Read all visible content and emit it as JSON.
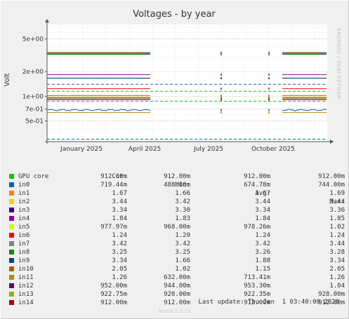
{
  "chart_data": {
    "type": "line",
    "title": "Voltages - by year",
    "ylabel": "Volt",
    "yscale": "log",
    "ylim": [
      0.28,
      7.5
    ],
    "yticks": [
      {
        "v": 5,
        "label": "5e+00"
      },
      {
        "v": 2,
        "label": "2e+00"
      },
      {
        "v": 1,
        "label": "1e+00"
      },
      {
        "v": 0.7,
        "label": "7e-01"
      },
      {
        "v": 0.5,
        "label": "5e-01"
      }
    ],
    "xticks": [
      "January 2025",
      "April 2025",
      "July 2025",
      "October 2025"
    ],
    "grid": true,
    "thresholds": [
      {
        "value": 1.4,
        "color": "#0066b3"
      },
      {
        "value": 1.15,
        "color": "#00cc00"
      },
      {
        "value": 0.87,
        "color": "#00cc00"
      },
      {
        "value": 0.3,
        "color": "#0066b3"
      }
    ],
    "series": [
      {
        "name": "GPU core",
        "color": "#00cc00",
        "cur": "912.00m",
        "min": "912.00m",
        "avg": "912.00m",
        "max": "912.00m",
        "level": 0.912
      },
      {
        "name": "in0",
        "color": "#0066b3",
        "cur": "719.44m",
        "min": "488.00m",
        "avg": "674.78m",
        "max": "744.00m",
        "level": 0.68
      },
      {
        "name": "in1",
        "color": "#ff8000",
        "cur": "1.67",
        "min": "1.66",
        "avg": "1.67",
        "max": "1.69",
        "level": 1.67
      },
      {
        "name": "in2",
        "color": "#ffcc00",
        "cur": "3.44",
        "min": "3.42",
        "avg": "3.44",
        "max": "3.44",
        "level": 3.44
      },
      {
        "name": "in3",
        "color": "#330099",
        "cur": "3.34",
        "min": "3.30",
        "avg": "3.34",
        "max": "3.36",
        "level": 3.34
      },
      {
        "name": "in4",
        "color": "#990099",
        "cur": "1.84",
        "min": "1.83",
        "avg": "1.84",
        "max": "1.85",
        "level": 1.84
      },
      {
        "name": "in5",
        "color": "#ccff00",
        "cur": "977.97m",
        "min": "968.00m",
        "avg": "978.26m",
        "max": "1.02",
        "level": 0.978
      },
      {
        "name": "in6",
        "color": "#ff0000",
        "cur": "1.24",
        "min": "1.20",
        "avg": "1.24",
        "max": "1.24",
        "level": 1.24
      },
      {
        "name": "in7",
        "color": "#808080",
        "cur": "3.42",
        "min": "3.42",
        "avg": "3.42",
        "max": "3.44",
        "level": 3.42
      },
      {
        "name": "in8",
        "color": "#008f00",
        "cur": "3.25",
        "min": "3.25",
        "avg": "3.26",
        "max": "3.28",
        "level": 3.25
      },
      {
        "name": "in9",
        "color": "#00487d",
        "cur": "3.34",
        "min": "1.66",
        "avg": "1.88",
        "max": "3.34",
        "level": 1.66
      },
      {
        "name": "in10",
        "color": "#b35a00",
        "cur": "2.05",
        "min": "1.02",
        "avg": "1.15",
        "max": "2.05",
        "level": 1.02
      },
      {
        "name": "in11",
        "color": "#b38f00",
        "cur": "1.26",
        "min": "632.00m",
        "avg": "713.41m",
        "max": "1.26",
        "level": 0.632
      },
      {
        "name": "in12",
        "color": "#6b006b",
        "cur": "952.00m",
        "min": "944.00m",
        "avg": "953.30m",
        "max": "1.04",
        "level": 0.952
      },
      {
        "name": "in13",
        "color": "#8fb300",
        "cur": "922.75m",
        "min": "920.00m",
        "avg": "922.35m",
        "max": "928.00m",
        "level": 0.922
      },
      {
        "name": "in14",
        "color": "#b30000",
        "cur": "912.00m",
        "min": "912.00m",
        "avg": "912.00m",
        "max": "912.00m",
        "level": 0.912
      }
    ]
  },
  "legend_headers": {
    "cur": "Cur:",
    "min": "Min:",
    "avg": "Avg:",
    "max": "Max:"
  },
  "last_update": "Last update: Thu Jan  1 03:40:00 2026",
  "footer": "Munin 2.0.73",
  "side_text": "RRDTOOL / TOBI OETIKER"
}
